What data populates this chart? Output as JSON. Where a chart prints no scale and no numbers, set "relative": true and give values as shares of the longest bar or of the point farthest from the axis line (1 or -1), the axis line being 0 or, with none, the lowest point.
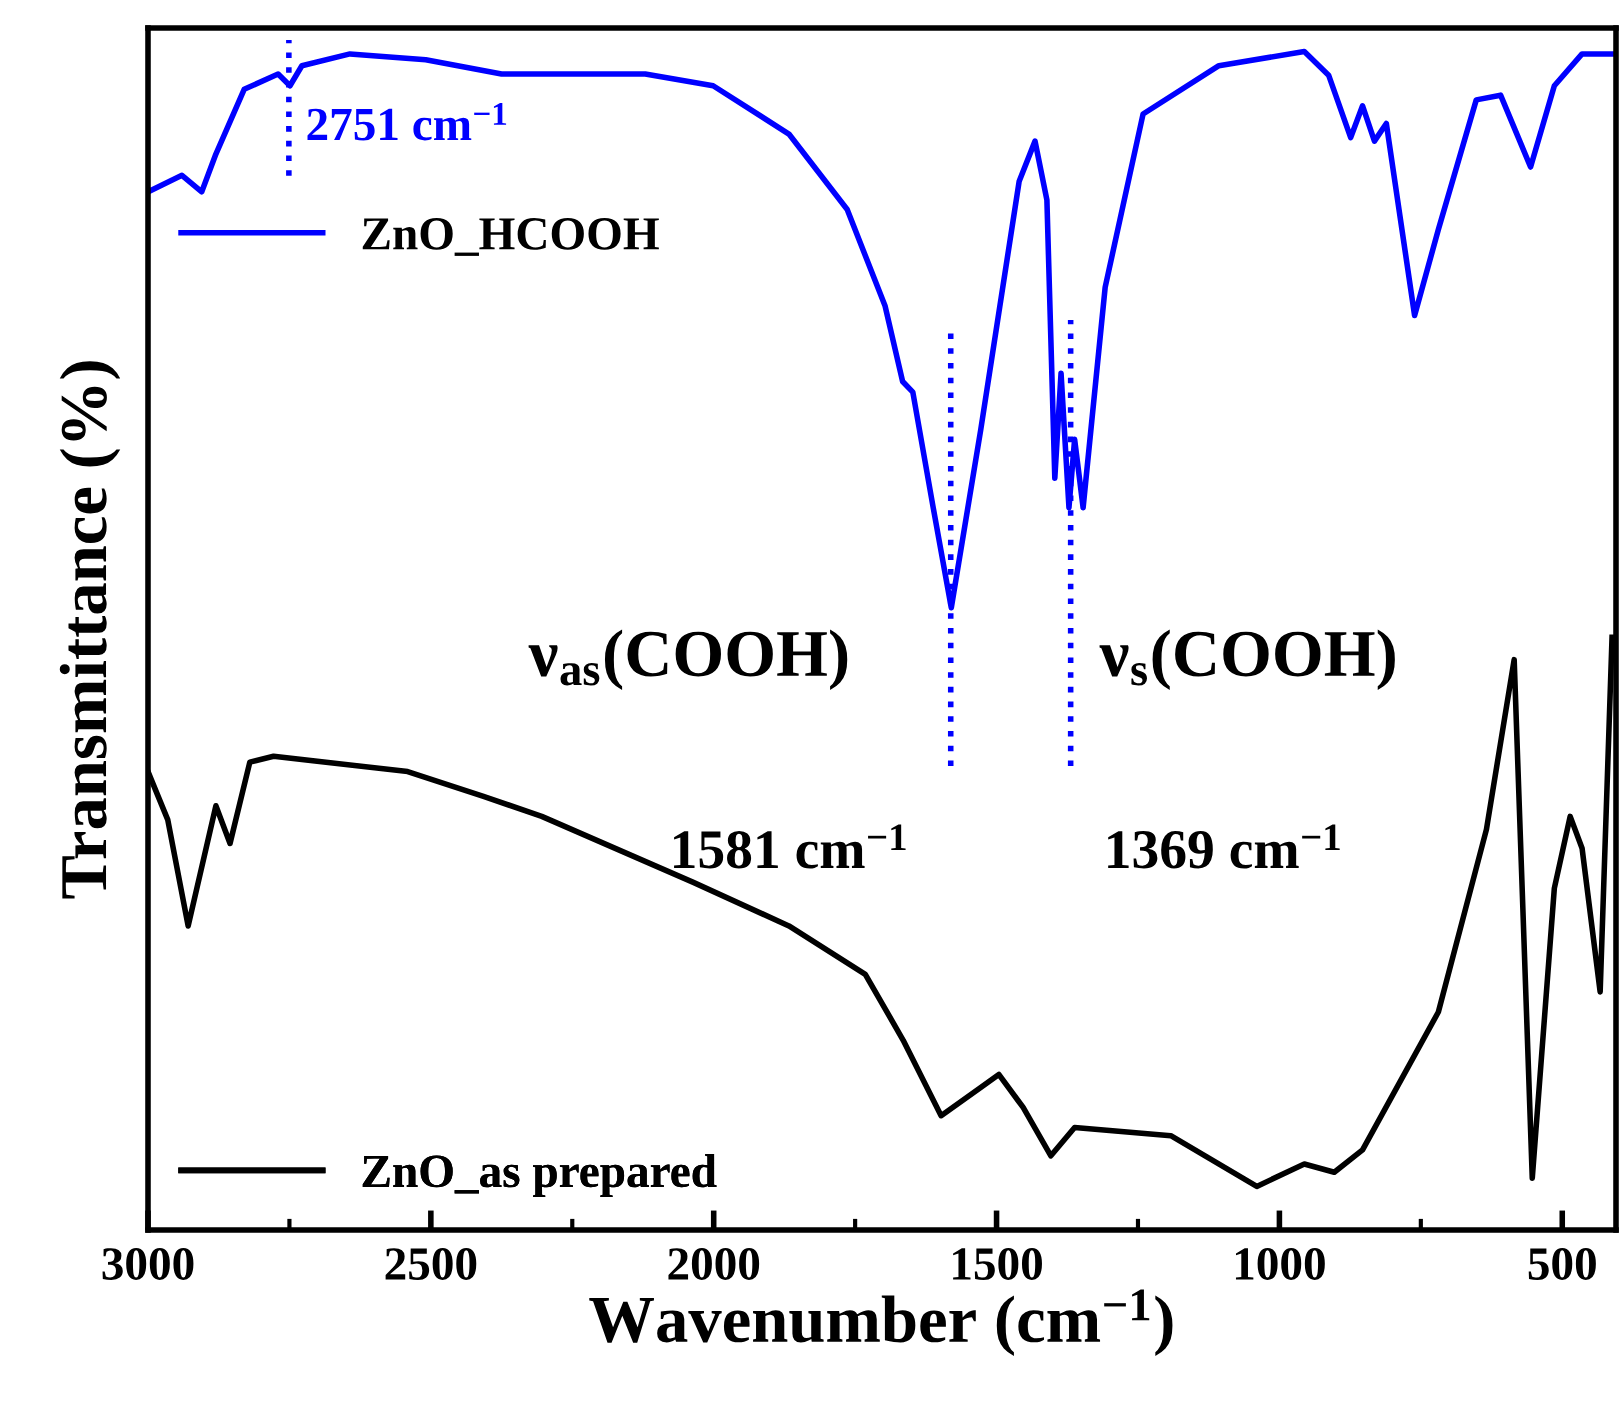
{
  "chart_data": {
    "type": "line",
    "relative": true,
    "xlabel": "Wavenumber (cm$^{−1}$)",
    "ylabel": "Transmittance (%)",
    "xlim": [
      3000,
      405
    ],
    "xticks": [
      3000,
      2500,
      2000,
      1500,
      1000,
      500
    ],
    "grid": false,
    "legend": "left",
    "marker": "none",
    "line_style": "solid",
    "series": [
      {
        "name": "ZnO_HCOOH",
        "color": "#0000ff",
        "x": [
          3000,
          2940,
          2905,
          2880,
          2830,
          2770,
          2749,
          2728,
          2643,
          2509,
          2375,
          2121,
          2001,
          1867,
          1764,
          1697,
          1666,
          1648,
          1612,
          1580,
          1528,
          1460,
          1432,
          1411,
          1397,
          1386,
          1372,
          1362,
          1347,
          1308,
          1241,
          1107,
          956,
          913,
          874,
          853,
          832,
          811,
          761,
          719,
          652,
          609,
          556,
          514,
          465,
          405
        ],
        "values": [
          0.881,
          0.895,
          0.881,
          0.913,
          0.968,
          0.981,
          0.971,
          0.988,
          0.998,
          0.993,
          0.981,
          0.981,
          0.971,
          0.93,
          0.866,
          0.784,
          0.72,
          0.711,
          0.613,
          0.528,
          0.679,
          0.89,
          0.924,
          0.874,
          0.638,
          0.727,
          0.613,
          0.671,
          0.613,
          0.8,
          0.947,
          0.988,
          1.0,
          0.98,
          0.927,
          0.954,
          0.924,
          0.939,
          0.776,
          0.849,
          0.959,
          0.963,
          0.902,
          0.971,
          0.998,
          0.998
        ]
      },
      {
        "name": "ZnO_as prepared",
        "color": "#000000",
        "x": [
          3000,
          2965,
          2929,
          2880,
          2855,
          2820,
          2778,
          2541,
          2407,
          2304,
          2036,
          1867,
          1732,
          1665,
          1598,
          1528,
          1496,
          1453,
          1404,
          1362,
          1192,
          1040,
          956,
          903,
          853,
          719,
          634,
          585,
          553,
          514,
          486,
          465,
          433,
          412
        ],
        "values": [
          0.389,
          0.348,
          0.258,
          0.36,
          0.328,
          0.397,
          0.402,
          0.389,
          0.368,
          0.351,
          0.295,
          0.258,
          0.217,
          0.161,
          0.097,
          0.121,
          0.132,
          0.104,
          0.063,
          0.087,
          0.08,
          0.037,
          0.056,
          0.049,
          0.068,
          0.185,
          0.34,
          0.484,
          0.044,
          0.29,
          0.351,
          0.324,
          0.202,
          0.503
        ]
      }
    ],
    "ref_lines": [
      {
        "axis": "x",
        "value": 2751,
        "label": "2751 cm$^{−1}$",
        "color": "#0000ff",
        "line_style": "dotted"
      },
      {
        "axis": "x",
        "value": 1581,
        "label": "1581 cm$^{−1}$",
        "color": "#0000ff",
        "line_style": "dotted"
      },
      {
        "axis": "x",
        "value": 1369,
        "label": "1369 cm$^{−1}$",
        "color": "#0000ff",
        "line_style": "dotted"
      }
    ],
    "annotations": [
      "ν$_{as}$(COOH)",
      "ν$_{s}$(COOH)"
    ]
  }
}
